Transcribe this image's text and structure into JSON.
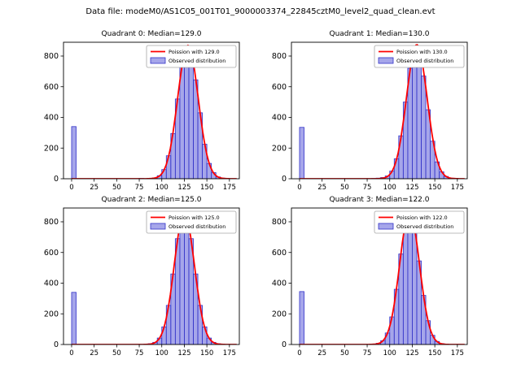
{
  "figure": {
    "title": "Data file: modeM0/AS1C05_001T01_9000003374_22845cztM0_level2_quad_clean.evt"
  },
  "colors": {
    "fit_line": "#ff0000",
    "bar_fill": "#6b6bdc",
    "bar_edge": "#3232c8",
    "axis": "#000000",
    "text": "#000000",
    "legend_border": "#a6a6a6",
    "background": "#ffffff"
  },
  "axes": {
    "xticks": [
      0,
      25,
      50,
      75,
      100,
      125,
      150,
      175
    ],
    "yticks": [
      0,
      200,
      400,
      600,
      800
    ],
    "xlim": [
      -9,
      186
    ],
    "ylim": [
      0,
      890
    ],
    "bin_width": 5,
    "bin_left_edges": [
      0,
      5,
      10,
      15,
      20,
      25,
      30,
      35,
      40,
      45,
      50,
      55,
      60,
      65,
      70,
      75,
      80,
      85,
      90,
      95,
      100,
      105,
      110,
      115,
      120,
      125,
      130,
      135,
      140,
      145,
      150,
      155,
      160,
      165,
      170,
      175
    ]
  },
  "chart_data": [
    {
      "type": "bar",
      "title": "Quadrant 0: Median=129.0",
      "median": 129.0,
      "poisson_lambda": 129.0,
      "fit_peak": 870,
      "legend": [
        "Poission with 129.0",
        "Observed distribution"
      ],
      "values": [
        340,
        0,
        0,
        0,
        0,
        0,
        0,
        0,
        0,
        0,
        0,
        0,
        0,
        0,
        0,
        2,
        0,
        3,
        6,
        20,
        60,
        150,
        295,
        520,
        735,
        860,
        810,
        645,
        430,
        225,
        100,
        40,
        12,
        4,
        1,
        0
      ]
    },
    {
      "type": "bar",
      "title": "Quadrant 1: Median=130.0",
      "median": 130.0,
      "poisson_lambda": 130.0,
      "fit_peak": 875,
      "legend": [
        "Poission with 130.0",
        "Observed distribution"
      ],
      "values": [
        335,
        0,
        0,
        0,
        0,
        0,
        0,
        0,
        0,
        0,
        0,
        0,
        0,
        0,
        0,
        0,
        2,
        4,
        8,
        18,
        50,
        130,
        280,
        500,
        720,
        865,
        835,
        670,
        450,
        245,
        110,
        45,
        15,
        4,
        1,
        0
      ]
    },
    {
      "type": "bar",
      "title": "Quadrant 2: Median=125.0",
      "median": 125.0,
      "poisson_lambda": 125.0,
      "fit_peak": 855,
      "legend": [
        "Poission with 125.0",
        "Observed distribution"
      ],
      "values": [
        340,
        0,
        0,
        0,
        0,
        0,
        0,
        0,
        0,
        0,
        0,
        0,
        0,
        0,
        0,
        0,
        2,
        5,
        14,
        42,
        115,
        255,
        460,
        690,
        840,
        845,
        690,
        460,
        255,
        115,
        42,
        14,
        5,
        1,
        0,
        0
      ]
    },
    {
      "type": "bar",
      "title": "Quadrant 3: Median=122.0",
      "median": 122.0,
      "poisson_lambda": 122.0,
      "fit_peak": 860,
      "legend": [
        "Poission with 122.0",
        "Observed distribution"
      ],
      "values": [
        345,
        0,
        0,
        0,
        0,
        0,
        0,
        0,
        0,
        0,
        0,
        0,
        0,
        0,
        0,
        0,
        3,
        8,
        25,
        75,
        180,
        360,
        590,
        785,
        850,
        755,
        545,
        320,
        155,
        60,
        20,
        6,
        1,
        0,
        0,
        0
      ]
    }
  ]
}
